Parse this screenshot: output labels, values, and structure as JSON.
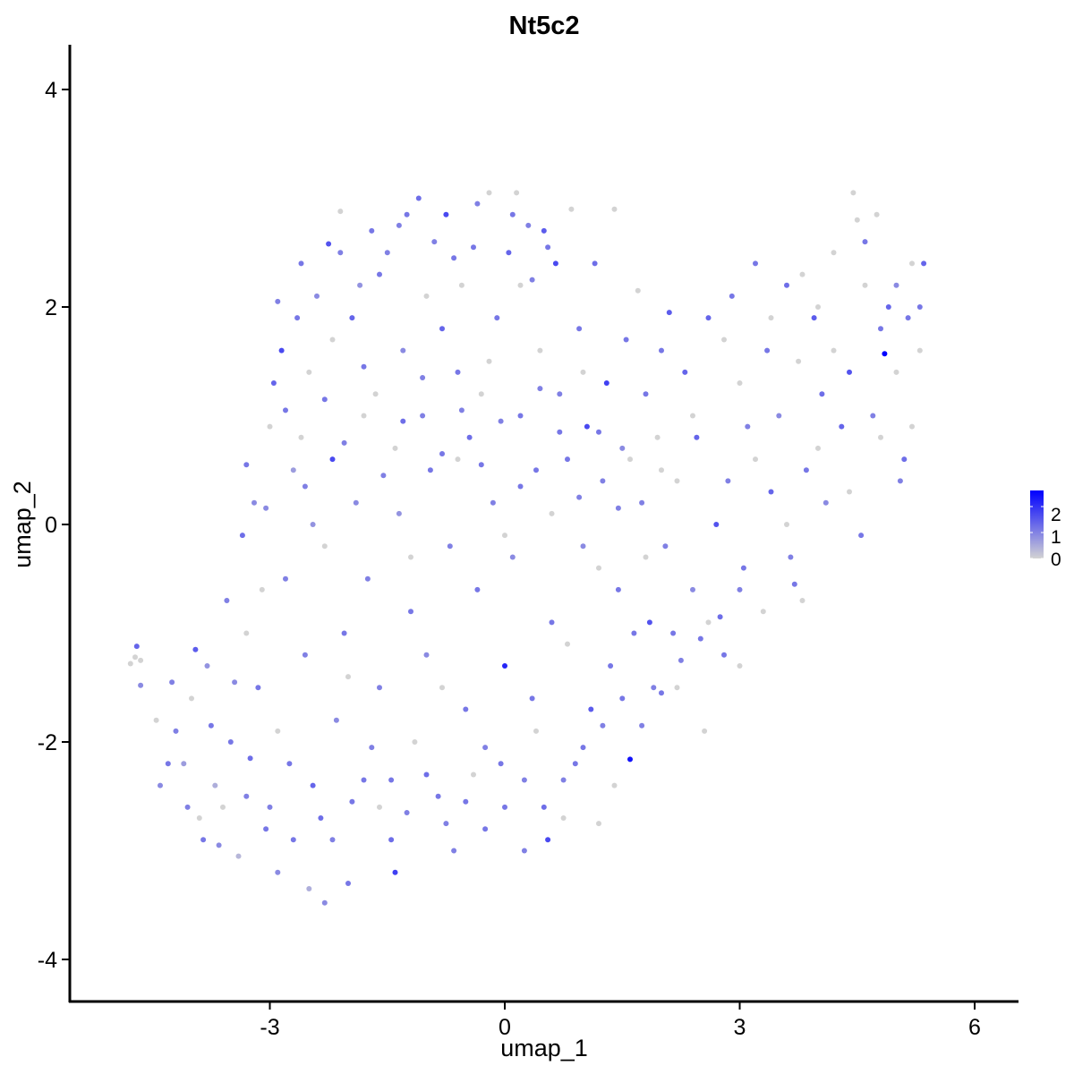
{
  "chart_data": {
    "type": "scatter",
    "title": "Nt5c2",
    "xlabel": "umap_1",
    "ylabel": "umap_2",
    "xlim": [
      -5.6,
      6.5
    ],
    "ylim": [
      -4.35,
      4.35
    ],
    "x_ticks": [
      -3,
      0,
      3,
      6
    ],
    "y_ticks": [
      -4,
      -2,
      0,
      2,
      4
    ],
    "x_tick_labels": [
      "-3",
      "0",
      "3",
      "6"
    ],
    "y_tick_labels": [
      "-4",
      "-2",
      "0",
      "2",
      "4"
    ],
    "grid": false,
    "legend": {
      "placement": "right",
      "labels": [
        "2",
        "1",
        "0"
      ],
      "values": [
        2,
        1,
        0
      ],
      "color_low": "#d3d3d3",
      "color_high": "#0000ff"
    },
    "expression_max": 2.3,
    "points": [
      [
        -4.7,
        -1.12,
        1.2
      ],
      [
        -4.78,
        -1.28,
        0
      ],
      [
        -4.72,
        -1.22,
        0
      ],
      [
        -4.65,
        -1.25,
        0
      ],
      [
        -4.65,
        -1.48,
        0.8
      ],
      [
        -4.45,
        -1.8,
        0
      ],
      [
        -4.2,
        -1.9,
        0.9
      ],
      [
        -4.3,
        -2.2,
        1.0
      ],
      [
        -4.1,
        -2.2,
        0.6
      ],
      [
        -4.05,
        -2.6,
        0.9
      ],
      [
        -3.95,
        -1.15,
        1.3
      ],
      [
        -3.85,
        -2.9,
        1.0
      ],
      [
        -3.8,
        -1.3,
        0.7
      ],
      [
        -3.7,
        -2.4,
        0.4
      ],
      [
        -3.65,
        -2.95,
        0.8
      ],
      [
        -3.55,
        -0.7,
        0.9
      ],
      [
        -3.5,
        -2.0,
        1.0
      ],
      [
        -3.4,
        -3.05,
        0.3
      ],
      [
        -3.35,
        -0.1,
        1.1
      ],
      [
        -3.3,
        -2.5,
        0.9
      ],
      [
        -3.2,
        0.2,
        0.8
      ],
      [
        -3.15,
        -1.5,
        1.0
      ],
      [
        -3.05,
        -2.8,
        1.0
      ],
      [
        -3.0,
        0.9,
        0
      ],
      [
        -2.95,
        1.3,
        1.2
      ],
      [
        -2.9,
        -3.2,
        0.8
      ],
      [
        -2.85,
        1.6,
        1.5
      ],
      [
        -2.8,
        -0.5,
        0.9
      ],
      [
        -2.75,
        -2.2,
        1.0
      ],
      [
        -2.7,
        0.5,
        0.6
      ],
      [
        -2.65,
        1.9,
        1.0
      ],
      [
        -2.55,
        -1.2,
        0.9
      ],
      [
        -2.5,
        -3.35,
        0.4
      ],
      [
        -2.45,
        0.0,
        0.7
      ],
      [
        -2.4,
        2.1,
        0.8
      ],
      [
        -2.35,
        -2.7,
        1.1
      ],
      [
        -2.3,
        -3.48,
        0.8
      ],
      [
        -2.25,
        2.58,
        1.4
      ],
      [
        -2.2,
        0.6,
        1.5
      ],
      [
        -2.15,
        -1.8,
        0.8
      ],
      [
        -2.1,
        2.88,
        0.0
      ],
      [
        -2.05,
        -1.0,
        1.0
      ],
      [
        -2.0,
        -3.3,
        1.0
      ],
      [
        -1.95,
        1.9,
        1.2
      ],
      [
        -1.9,
        0.2,
        0.8
      ],
      [
        -1.85,
        2.2,
        0.7
      ],
      [
        -1.8,
        -2.35,
        1.0
      ],
      [
        -1.75,
        -0.5,
        0.9
      ],
      [
        -1.7,
        2.7,
        1.0
      ],
      [
        -1.65,
        1.2,
        0.0
      ],
      [
        -1.6,
        -1.5,
        0.9
      ],
      [
        -1.5,
        2.5,
        0.9
      ],
      [
        -1.45,
        -2.9,
        1.1
      ],
      [
        -1.4,
        -3.2,
        1.6
      ],
      [
        -1.35,
        0.1,
        0.7
      ],
      [
        -1.3,
        1.6,
        0.8
      ],
      [
        -1.25,
        2.85,
        1.0
      ],
      [
        -1.2,
        -0.8,
        1.0
      ],
      [
        -1.15,
        -2.0,
        0.0
      ],
      [
        -1.1,
        3.0,
        1.1
      ],
      [
        -1.05,
        1.0,
        0.9
      ],
      [
        -1.0,
        -1.2,
        0.8
      ],
      [
        -0.95,
        0.5,
        1.0
      ],
      [
        -0.9,
        2.6,
        0.9
      ],
      [
        -0.85,
        -2.5,
        1.0
      ],
      [
        -0.8,
        1.8,
        1.2
      ],
      [
        -0.75,
        2.85,
        1.5
      ],
      [
        -0.7,
        -0.2,
        0.9
      ],
      [
        -0.65,
        -3.0,
        0.9
      ],
      [
        -0.6,
        1.4,
        1.0
      ],
      [
        -0.55,
        2.2,
        0.0
      ],
      [
        -0.5,
        -1.7,
        1.0
      ],
      [
        -0.45,
        0.8,
        1.1
      ],
      [
        -0.4,
        2.55,
        1.0
      ],
      [
        -0.35,
        -0.6,
        1.0
      ],
      [
        -0.3,
        1.2,
        0.0
      ],
      [
        -0.25,
        -2.8,
        1.0
      ],
      [
        -0.2,
        3.05,
        0.0
      ],
      [
        -0.15,
        0.2,
        0.9
      ],
      [
        -0.1,
        1.9,
        1.0
      ],
      [
        -0.05,
        -2.2,
        1.0
      ],
      [
        0.0,
        -1.3,
        1.9
      ],
      [
        0.05,
        2.5,
        1.2
      ],
      [
        0.1,
        -0.3,
        0.8
      ],
      [
        0.15,
        3.05,
        0.0
      ],
      [
        0.2,
        1.0,
        1.0
      ],
      [
        0.25,
        -3.0,
        0.9
      ],
      [
        0.3,
        2.75,
        0.9
      ],
      [
        0.35,
        -1.6,
        1.0
      ],
      [
        0.4,
        0.5,
        1.0
      ],
      [
        0.45,
        1.6,
        0.0
      ],
      [
        0.5,
        2.7,
        1.3
      ],
      [
        0.55,
        -2.9,
        1.5
      ],
      [
        0.6,
        -0.9,
        1.0
      ],
      [
        0.65,
        2.4,
        1.5
      ],
      [
        0.7,
        1.2,
        0.9
      ],
      [
        0.75,
        -2.7,
        0.0
      ],
      [
        0.8,
        0.6,
        1.0
      ],
      [
        0.85,
        2.9,
        0.0
      ],
      [
        0.9,
        -2.2,
        1.0
      ],
      [
        0.95,
        1.8,
        1.0
      ],
      [
        1.0,
        -0.2,
        0.8
      ],
      [
        1.05,
        0.9,
        1.5
      ],
      [
        1.1,
        -1.7,
        1.3
      ],
      [
        1.15,
        2.4,
        1.1
      ],
      [
        1.2,
        -2.75,
        0.0
      ],
      [
        1.25,
        0.4,
        0.9
      ],
      [
        1.3,
        1.3,
        1.6
      ],
      [
        1.35,
        -1.3,
        1.0
      ],
      [
        1.4,
        2.9,
        0.0
      ],
      [
        1.45,
        -0.6,
        1.0
      ],
      [
        1.5,
        0.7,
        0.8
      ],
      [
        1.55,
        1.7,
        1.0
      ],
      [
        1.6,
        -2.16,
        2.1
      ],
      [
        1.65,
        -1.0,
        1.0
      ],
      [
        1.7,
        2.15,
        0.0
      ],
      [
        1.75,
        0.2,
        0.9
      ],
      [
        1.8,
        1.2,
        1.0
      ],
      [
        1.85,
        -0.9,
        1.4
      ],
      [
        1.9,
        -1.5,
        0.9
      ],
      [
        1.95,
        0.8,
        0.0
      ],
      [
        2.0,
        1.6,
        1.0
      ],
      [
        2.05,
        -0.2,
        0.9
      ],
      [
        2.1,
        1.95,
        1.3
      ],
      [
        2.15,
        -1.0,
        1.0
      ],
      [
        2.2,
        0.4,
        0.0
      ],
      [
        2.3,
        1.4,
        1.2
      ],
      [
        2.4,
        -0.6,
        0.8
      ],
      [
        2.45,
        0.8,
        1.2
      ],
      [
        2.55,
        -1.9,
        0.0
      ],
      [
        2.6,
        1.9,
        1.2
      ],
      [
        2.7,
        0.0,
        1.4
      ],
      [
        2.8,
        -1.2,
        1.0
      ],
      [
        2.85,
        0.4,
        0.9
      ],
      [
        2.9,
        2.1,
        1.0
      ],
      [
        3.0,
        1.3,
        0.0
      ],
      [
        3.05,
        -0.4,
        1.0
      ],
      [
        3.1,
        0.9,
        0.9
      ],
      [
        3.2,
        2.4,
        1.0
      ],
      [
        3.3,
        -0.8,
        0.0
      ],
      [
        3.35,
        1.6,
        1.0
      ],
      [
        3.4,
        0.3,
        1.2
      ],
      [
        3.5,
        1.0,
        0.8
      ],
      [
        3.6,
        2.2,
        1.1
      ],
      [
        3.65,
        -0.3,
        0.9
      ],
      [
        3.7,
        -0.55,
        1.0
      ],
      [
        3.75,
        1.5,
        0.0
      ],
      [
        3.85,
        0.5,
        1.0
      ],
      [
        3.95,
        1.9,
        1.3
      ],
      [
        4.05,
        1.2,
        1.1
      ],
      [
        4.1,
        0.2,
        0.8
      ],
      [
        4.2,
        2.5,
        0.0
      ],
      [
        4.3,
        0.9,
        1.2
      ],
      [
        4.4,
        1.4,
        1.4
      ],
      [
        4.45,
        3.05,
        0.0
      ],
      [
        4.5,
        2.8,
        0.0
      ],
      [
        4.55,
        -0.1,
        1.0
      ],
      [
        4.6,
        2.6,
        1.0
      ],
      [
        4.7,
        1.0,
        0.9
      ],
      [
        4.75,
        2.85,
        0.0
      ],
      [
        4.8,
        1.8,
        1.0
      ],
      [
        4.85,
        1.57,
        2.3
      ],
      [
        4.9,
        2.0,
        1.2
      ],
      [
        5.0,
        2.2,
        0.8
      ],
      [
        5.05,
        0.4,
        0.9
      ],
      [
        5.1,
        0.6,
        1.1
      ],
      [
        5.15,
        1.9,
        1.0
      ],
      [
        5.2,
        2.4,
        0.0
      ],
      [
        5.3,
        2.0,
        1.0
      ],
      [
        5.35,
        2.4,
        1.2
      ],
      [
        -4.0,
        -1.6,
        0.0
      ],
      [
        -3.9,
        -2.7,
        0.0
      ],
      [
        -3.6,
        -2.6,
        0.0
      ],
      [
        -3.3,
        -1.0,
        0.0
      ],
      [
        -3.1,
        -0.6,
        0.0
      ],
      [
        -2.9,
        -1.9,
        0.0
      ],
      [
        -2.6,
        0.8,
        0.0
      ],
      [
        -2.5,
        1.4,
        0.0
      ],
      [
        -2.3,
        -0.2,
        0.0
      ],
      [
        -2.2,
        1.7,
        0.0
      ],
      [
        -2.0,
        -1.4,
        0.0
      ],
      [
        -1.8,
        1.0,
        0.0
      ],
      [
        -1.6,
        -2.6,
        0.0
      ],
      [
        -1.4,
        0.7,
        0.0
      ],
      [
        -1.2,
        -0.3,
        0.0
      ],
      [
        -1.0,
        2.1,
        0.0
      ],
      [
        -0.8,
        -1.5,
        0.0
      ],
      [
        -0.6,
        0.6,
        0.0
      ],
      [
        -0.4,
        -2.3,
        0.0
      ],
      [
        -0.2,
        1.5,
        0.0
      ],
      [
        0.0,
        -0.1,
        0.0
      ],
      [
        0.2,
        2.2,
        0.0
      ],
      [
        0.4,
        -1.9,
        0.0
      ],
      [
        0.6,
        0.1,
        0.0
      ],
      [
        0.8,
        -1.1,
        0.0
      ],
      [
        1.0,
        1.4,
        0.0
      ],
      [
        1.2,
        -0.4,
        0.0
      ],
      [
        1.4,
        -2.4,
        0.0
      ],
      [
        1.6,
        0.6,
        0.0
      ],
      [
        1.8,
        -0.3,
        0.0
      ],
      [
        2.0,
        0.5,
        0.0
      ],
      [
        2.2,
        -1.5,
        0.0
      ],
      [
        2.4,
        1.0,
        0.0
      ],
      [
        2.6,
        -0.9,
        0.0
      ],
      [
        2.8,
        1.7,
        0.0
      ],
      [
        3.0,
        -1.3,
        0.0
      ],
      [
        3.2,
        0.6,
        0.0
      ],
      [
        3.4,
        1.9,
        0.0
      ],
      [
        3.6,
        0.0,
        0.0
      ],
      [
        3.8,
        -0.7,
        0.0
      ],
      [
        4.0,
        0.7,
        0.0
      ],
      [
        4.2,
        1.6,
        0.0
      ],
      [
        4.4,
        0.3,
        0.0
      ],
      [
        4.6,
        2.2,
        0.0
      ],
      [
        4.8,
        0.8,
        0.0
      ],
      [
        5.0,
        1.4,
        0.0
      ],
      [
        5.2,
        0.9,
        0.0
      ],
      [
        5.3,
        1.6,
        0.0
      ],
      [
        4.0,
        2.0,
        0.0
      ],
      [
        3.8,
        2.3,
        0.0
      ],
      [
        -4.4,
        -2.4,
        0.8
      ],
      [
        -4.25,
        -1.45,
        0.9
      ],
      [
        -3.75,
        -1.85,
        1.0
      ],
      [
        -3.45,
        -1.45,
        0.8
      ],
      [
        -3.25,
        -2.15,
        1.1
      ],
      [
        -3.0,
        -2.6,
        0.9
      ],
      [
        -2.7,
        -2.9,
        1.0
      ],
      [
        -2.45,
        -2.4,
        1.2
      ],
      [
        -2.2,
        -2.9,
        0.9
      ],
      [
        -1.95,
        -2.55,
        1.0
      ],
      [
        -1.7,
        -2.05,
        0.9
      ],
      [
        -1.45,
        -2.35,
        1.0
      ],
      [
        -1.25,
        -2.65,
        0.9
      ],
      [
        -1.0,
        -2.3,
        1.1
      ],
      [
        -0.75,
        -2.75,
        0.9
      ],
      [
        -0.5,
        -2.55,
        1.0
      ],
      [
        -0.25,
        -2.05,
        0.9
      ],
      [
        0.0,
        -2.6,
        1.0
      ],
      [
        0.25,
        -2.35,
        0.9
      ],
      [
        0.5,
        -2.6,
        1.1
      ],
      [
        0.75,
        -2.35,
        0.9
      ],
      [
        1.0,
        -2.05,
        1.0
      ],
      [
        1.25,
        -1.85,
        0.9
      ],
      [
        1.5,
        -1.6,
        1.0
      ],
      [
        1.75,
        -1.85,
        0.9
      ],
      [
        2.0,
        -1.55,
        1.0
      ],
      [
        2.25,
        -1.25,
        0.9
      ],
      [
        2.5,
        -1.05,
        1.0
      ],
      [
        2.75,
        -0.85,
        1.1
      ],
      [
        3.0,
        -0.6,
        0.9
      ],
      [
        -3.3,
        0.55,
        1.0
      ],
      [
        -3.05,
        0.15,
        0.8
      ],
      [
        -2.8,
        1.05,
        1.0
      ],
      [
        -2.55,
        0.35,
        0.9
      ],
      [
        -2.3,
        1.15,
        1.0
      ],
      [
        -2.05,
        0.75,
        0.9
      ],
      [
        -1.8,
        1.45,
        1.0
      ],
      [
        -1.55,
        0.45,
        0.9
      ],
      [
        -1.3,
        0.95,
        1.1
      ],
      [
        -1.05,
        1.35,
        0.9
      ],
      [
        -0.8,
        0.65,
        1.0
      ],
      [
        -0.55,
        1.05,
        0.9
      ],
      [
        -0.3,
        0.55,
        1.0
      ],
      [
        -0.05,
        0.95,
        0.9
      ],
      [
        0.2,
        0.35,
        1.0
      ],
      [
        0.45,
        1.25,
        0.9
      ],
      [
        0.7,
        0.85,
        1.0
      ],
      [
        0.95,
        0.25,
        0.9
      ],
      [
        1.2,
        0.85,
        1.0
      ],
      [
        1.45,
        0.15,
        0.9
      ],
      [
        -2.9,
        2.05,
        0.9
      ],
      [
        -2.6,
        2.4,
        1.0
      ],
      [
        -2.1,
        2.5,
        0.9
      ],
      [
        -1.6,
        2.3,
        1.0
      ],
      [
        -1.35,
        2.75,
        0.9
      ],
      [
        -0.65,
        2.45,
        1.0
      ],
      [
        -0.35,
        2.95,
        0.9
      ],
      [
        0.1,
        2.85,
        1.0
      ],
      [
        0.35,
        2.25,
        0.9
      ],
      [
        0.55,
        2.55,
        1.0
      ]
    ]
  }
}
